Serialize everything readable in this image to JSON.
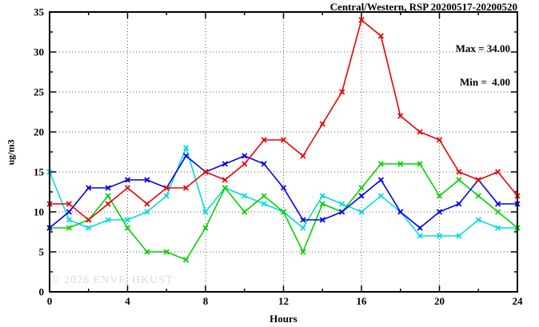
{
  "watermark": "© 2026 ENVF, HKUST",
  "chart_data": {
    "type": "line",
    "title": "Central/Western, RSP 20200517-20200520",
    "xlabel": "Hours",
    "ylabel": "ug/m3",
    "xlim": [
      0,
      24
    ],
    "ylim": [
      0,
      35
    ],
    "x_major_ticks": [
      0,
      4,
      8,
      12,
      16,
      20,
      24
    ],
    "x_minor_step": 2,
    "y_major_ticks": [
      0,
      5,
      10,
      15,
      20,
      25,
      30,
      35
    ],
    "y_minor_step": 2.5,
    "grid": true,
    "legend": {
      "position": "top-right",
      "lines": [
        "Max = 34.00",
        "Min =  4.00"
      ],
      "max": 34.0,
      "min": 4.0
    },
    "x": [
      0,
      1,
      2,
      3,
      4,
      5,
      6,
      7,
      8,
      9,
      10,
      11,
      12,
      13,
      14,
      15,
      16,
      17,
      18,
      19,
      20,
      21,
      22,
      23,
      24
    ],
    "series": [
      {
        "name": "cyan",
        "color": "#00dddd",
        "values": [
          15,
          9,
          8,
          9,
          9,
          10,
          12,
          18,
          10,
          13,
          12,
          11,
          10,
          8,
          12,
          11,
          10,
          12,
          10,
          7,
          7,
          7,
          9,
          8,
          8
        ]
      },
      {
        "name": "green",
        "color": "#00d400",
        "values": [
          8,
          8,
          9,
          12,
          8,
          5,
          5,
          4,
          8,
          13,
          10,
          12,
          10,
          5,
          11,
          10,
          13,
          16,
          16,
          16,
          12,
          14,
          12,
          10,
          8
        ]
      },
      {
        "name": "blue",
        "color": "#0000ee",
        "values": [
          8,
          10,
          13,
          13,
          14,
          14,
          13,
          17,
          15,
          16,
          17,
          16,
          13,
          9,
          9,
          10,
          12,
          14,
          10,
          8,
          10,
          11,
          14,
          11,
          11
        ]
      },
      {
        "name": "red",
        "color": "#ee0000",
        "values": [
          11,
          11,
          9,
          11,
          13,
          11,
          13,
          13,
          15,
          14,
          16,
          19,
          19,
          17,
          21,
          25,
          34,
          32,
          22,
          20,
          19,
          15,
          14,
          15,
          12
        ]
      }
    ]
  }
}
